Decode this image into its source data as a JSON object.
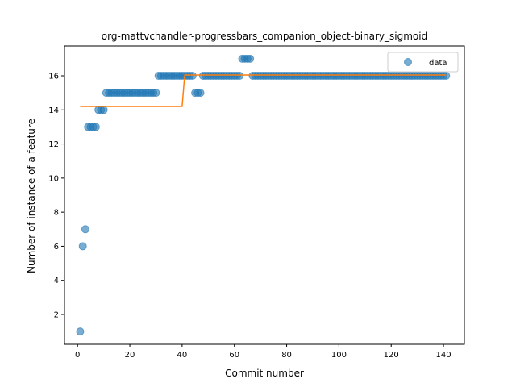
{
  "chart_data": {
    "type": "scatter",
    "title": "org-mattvchandler-progressbars_companion_object-binary_sigmoid",
    "xlabel": "Commit number",
    "ylabel": "Number of instance of a feature",
    "xlim": [
      -5,
      148
    ],
    "ylim": [
      0.25,
      17.75
    ],
    "xticks": [
      0,
      20,
      40,
      60,
      80,
      100,
      120,
      140
    ],
    "yticks": [
      2,
      4,
      6,
      8,
      10,
      12,
      14,
      16
    ],
    "grid": false,
    "legend_position": "top-right",
    "series": [
      {
        "name": "data",
        "kind": "scatter",
        "color": "#1f77b4",
        "x": [
          1,
          2,
          3,
          4,
          5,
          6,
          7,
          8,
          9,
          10,
          11,
          12,
          13,
          14,
          15,
          16,
          17,
          18,
          19,
          20,
          21,
          22,
          23,
          24,
          25,
          26,
          27,
          28,
          29,
          30,
          31,
          32,
          33,
          34,
          35,
          36,
          37,
          38,
          39,
          40,
          41,
          42,
          43,
          44,
          45,
          46,
          47,
          48,
          49,
          50,
          51,
          52,
          53,
          54,
          55,
          56,
          57,
          58,
          59,
          60,
          61,
          62,
          63,
          64,
          65,
          66,
          67,
          68,
          69,
          70,
          71,
          72,
          73,
          74,
          75,
          76,
          77,
          78,
          79,
          80,
          81,
          82,
          83,
          84,
          85,
          86,
          87,
          88,
          89,
          90,
          91,
          92,
          93,
          94,
          95,
          96,
          97,
          98,
          99,
          100,
          101,
          102,
          103,
          104,
          105,
          106,
          107,
          108,
          109,
          110,
          111,
          112,
          113,
          114,
          115,
          116,
          117,
          118,
          119,
          120,
          121,
          122,
          123,
          124,
          125,
          126,
          127,
          128,
          129,
          130,
          131,
          132,
          133,
          134,
          135,
          136,
          137,
          138,
          139,
          140,
          141
        ],
        "y": [
          1,
          6,
          7,
          13,
          13,
          13,
          13,
          14,
          14,
          14,
          15,
          15,
          15,
          15,
          15,
          15,
          15,
          15,
          15,
          15,
          15,
          15,
          15,
          15,
          15,
          15,
          15,
          15,
          15,
          15,
          16,
          16,
          16,
          16,
          16,
          16,
          16,
          16,
          16,
          16,
          16,
          16,
          16,
          16,
          15,
          15,
          15,
          16,
          16,
          16,
          16,
          16,
          16,
          16,
          16,
          16,
          16,
          16,
          16,
          16,
          16,
          16,
          17,
          17,
          17,
          17,
          16,
          16,
          16,
          16,
          16,
          16,
          16,
          16,
          16,
          16,
          16,
          16,
          16,
          16,
          16,
          16,
          16,
          16,
          16,
          16,
          16,
          16,
          16,
          16,
          16,
          16,
          16,
          16,
          16,
          16,
          16,
          16,
          16,
          16,
          16,
          16,
          16,
          16,
          16,
          16,
          16,
          16,
          16,
          16,
          16,
          16,
          16,
          16,
          16,
          16,
          16,
          16,
          16,
          16,
          16,
          16,
          16,
          16,
          16,
          16,
          16,
          16,
          16,
          16,
          16,
          16,
          16,
          16,
          16,
          16,
          16,
          16,
          16,
          16,
          16
        ]
      },
      {
        "name": "",
        "kind": "line",
        "color": "#ff7f0e",
        "x": [
          1,
          40,
          41,
          141
        ],
        "y": [
          14.2,
          14.2,
          16.05,
          16.05
        ]
      }
    ]
  }
}
